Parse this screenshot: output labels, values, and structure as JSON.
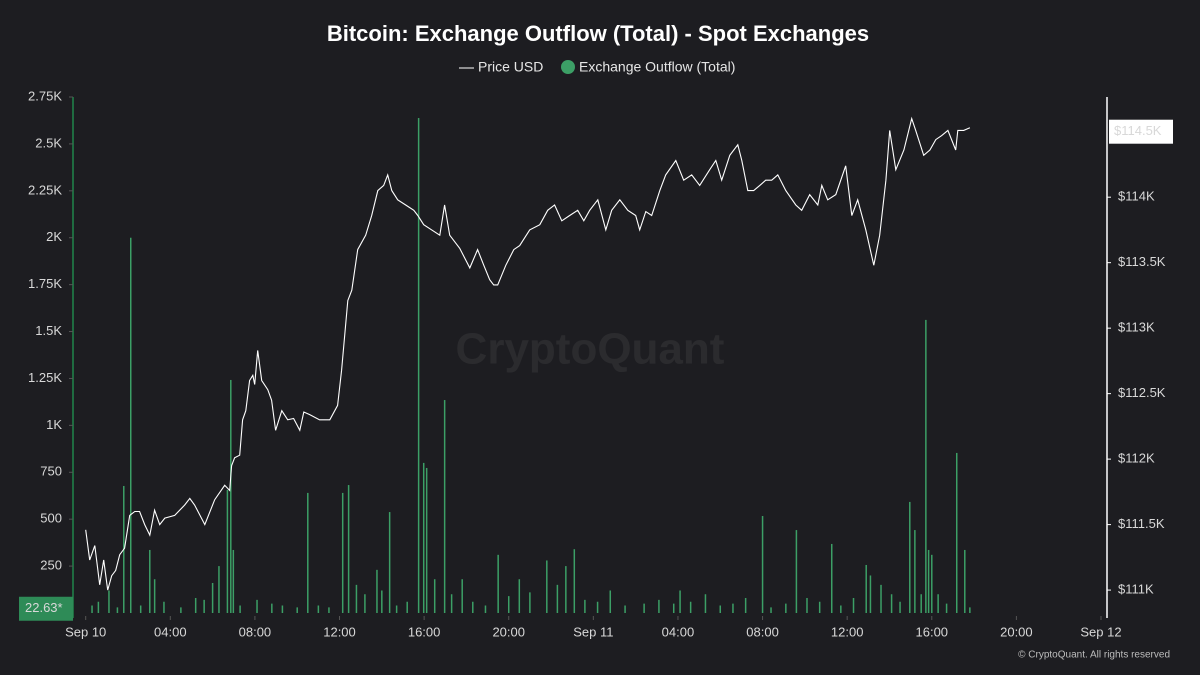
{
  "chart_data": {
    "type": "combo",
    "title": "Bitcoin: Exchange Outflow (Total) - Spot Exchanges",
    "watermark": "CryptoQuant",
    "credit": "© CryptoQuant. All rights reserved",
    "xlim": [
      -0.6,
      48
    ],
    "xticks": [
      {
        "value": 0,
        "label": "Sep 10"
      },
      {
        "value": 4,
        "label": "04:00"
      },
      {
        "value": 8,
        "label": "08:00"
      },
      {
        "value": 12,
        "label": "12:00"
      },
      {
        "value": 16,
        "label": "16:00"
      },
      {
        "value": 20,
        "label": "20:00"
      },
      {
        "value": 24,
        "label": "Sep 11"
      },
      {
        "value": 28,
        "label": "04:00"
      },
      {
        "value": 32,
        "label": "08:00"
      },
      {
        "value": 36,
        "label": "12:00"
      },
      {
        "value": 40,
        "label": "16:00"
      },
      {
        "value": 44,
        "label": "20:00"
      },
      {
        "value": 48,
        "label": "Sep 12"
      }
    ],
    "ylim": [
      0,
      2750
    ],
    "yticks": [
      250,
      500,
      750,
      {
        "value": 1000,
        "label": "1K"
      },
      {
        "value": 1250,
        "label": "1.25K"
      },
      {
        "value": 1500,
        "label": "1.5K"
      },
      {
        "value": 1750,
        "label": "1.75K"
      },
      {
        "value": 2000,
        "label": "2K"
      },
      {
        "value": 2250,
        "label": "2.25K"
      },
      {
        "value": 2500,
        "label": "2.5K"
      },
      {
        "value": 2750,
        "label": "2.75K"
      }
    ],
    "y2lim": [
      110825,
      114765
    ],
    "y2ticks": [
      {
        "value": 111000,
        "label": "$111K"
      },
      {
        "value": 111500,
        "label": "$111.5K"
      },
      {
        "value": 112000,
        "label": "$112K"
      },
      {
        "value": 112500,
        "label": "$112.5K"
      },
      {
        "value": 113000,
        "label": "$113K"
      },
      {
        "value": 113500,
        "label": "$113.5K"
      },
      {
        "value": 114000,
        "label": "$114K"
      }
    ],
    "price_marker": {
      "value": 114500,
      "label": "$114.5K"
    },
    "outflow_marker": {
      "value": 22.63,
      "label": "22.63*"
    },
    "series": [
      {
        "name": "Price USD",
        "type": "line",
        "axis": "y2",
        "color": "#ffffff",
        "x": [
          0,
          0.19,
          0.43,
          0.66,
          0.85,
          1.04,
          1.23,
          1.42,
          1.61,
          1.84,
          2.08,
          2.32,
          2.55,
          2.79,
          3.03,
          3.26,
          3.5,
          3.74,
          4.21,
          4.68,
          4.92,
          5.15,
          5.63,
          6.1,
          6.57,
          6.81,
          6.9,
          7.04,
          7.28,
          7.42,
          7.57,
          7.75,
          7.9,
          7.99,
          8.13,
          8.32,
          8.61,
          8.79,
          8.98,
          9.27,
          9.55,
          9.83,
          10.12,
          10.31,
          10.59,
          11.06,
          11.54,
          11.91,
          12.1,
          12.39,
          12.58,
          12.86,
          13.24,
          13.52,
          13.81,
          14.09,
          14.28,
          14.47,
          14.75,
          15.13,
          15.51,
          15.7,
          15.98,
          16.36,
          16.74,
          16.97,
          17.21,
          17.68,
          18.16,
          18.53,
          18.82,
          19.1,
          19.29,
          19.48,
          19.86,
          20.24,
          20.52,
          20.99,
          21.47,
          21.84,
          22.17,
          22.51,
          22.88,
          23.26,
          23.55,
          23.83,
          24.21,
          24.59,
          24.87,
          25.25,
          25.63,
          26,
          26.19,
          26.48,
          26.76,
          27.14,
          27.42,
          27.9,
          28.27,
          28.65,
          29.03,
          29.5,
          29.79,
          30.07,
          30.45,
          30.83,
          31.02,
          31.3,
          31.58,
          31.87,
          32.15,
          32.43,
          32.72,
          33.1,
          33.57,
          33.85,
          34.23,
          34.61,
          34.8,
          35.08,
          35.46,
          35.93,
          36.22,
          36.5,
          36.88,
          37.26,
          37.54,
          37.83,
          38.01,
          38.3,
          38.68,
          39.05,
          39.24,
          39.62,
          39.91,
          40.19,
          40.47,
          40.76,
          41.13,
          41.23,
          41.51,
          41.8
        ],
        "values": [
          111460,
          111230,
          111340,
          111040,
          111230,
          111000,
          111110,
          111150,
          111270,
          111320,
          111570,
          111600,
          111600,
          111500,
          111420,
          111610,
          111500,
          111550,
          111570,
          111650,
          111700,
          111650,
          111500,
          111690,
          111800,
          111760,
          111950,
          112010,
          112030,
          112300,
          112370,
          112600,
          112640,
          112570,
          112830,
          112600,
          112530,
          112450,
          112220,
          112370,
          112300,
          112310,
          112220,
          112360,
          112340,
          112300,
          112300,
          112410,
          112680,
          113210,
          113290,
          113600,
          113710,
          113860,
          114050,
          114090,
          114170,
          114050,
          113980,
          113940,
          113900,
          113860,
          113790,
          113750,
          113710,
          113940,
          113710,
          113610,
          113460,
          113600,
          113480,
          113370,
          113330,
          113330,
          113480,
          113600,
          113630,
          113750,
          113790,
          113900,
          113940,
          113820,
          113860,
          113900,
          113820,
          113900,
          113980,
          113750,
          113900,
          113980,
          113900,
          113860,
          113750,
          113890,
          113860,
          114050,
          114170,
          114280,
          114130,
          114170,
          114090,
          114210,
          114280,
          114130,
          114320,
          114400,
          114280,
          114050,
          114050,
          114090,
          114130,
          114130,
          114170,
          114050,
          113940,
          113900,
          114020,
          113940,
          114090,
          113980,
          114020,
          114240,
          113860,
          113980,
          113750,
          113480,
          113710,
          114130,
          114510,
          114210,
          114360,
          114600,
          114510,
          114320,
          114360,
          114440,
          114470,
          114510,
          114360,
          114510,
          114510,
          114530
        ]
      },
      {
        "name": "Exchange Outflow (Total)",
        "type": "bar",
        "axis": "y",
        "color": "#3c9f66",
        "x": [
          0.3,
          0.6,
          1.1,
          1.5,
          1.8,
          2.13,
          2.6,
          3.03,
          3.26,
          3.7,
          4.5,
          5.2,
          5.6,
          6.0,
          6.3,
          6.7,
          6.86,
          6.98,
          7.3,
          8.1,
          8.8,
          9.3,
          10.0,
          10.5,
          11.0,
          11.5,
          12.15,
          12.43,
          12.8,
          13.2,
          13.77,
          14.0,
          14.37,
          14.7,
          15.2,
          15.74,
          15.98,
          16.12,
          16.5,
          16.97,
          17.3,
          17.8,
          18.3,
          18.9,
          19.5,
          20.0,
          20.5,
          21.0,
          21.8,
          22.3,
          22.7,
          23.1,
          23.6,
          24.2,
          24.8,
          25.5,
          26.4,
          27.1,
          27.8,
          28.1,
          28.6,
          29.3,
          30.0,
          30.6,
          31.2,
          32.0,
          32.4,
          33.1,
          33.6,
          34.1,
          34.7,
          35.27,
          35.7,
          36.3,
          36.9,
          37.1,
          37.6,
          38.1,
          38.5,
          38.96,
          39.2,
          39.5,
          39.72,
          39.85,
          40.0,
          40.3,
          40.7,
          41.18,
          41.56,
          41.8
        ],
        "values": [
          40,
          60,
          120,
          30,
          677,
          2000,
          40,
          336,
          180,
          60,
          30,
          80,
          70,
          160,
          250,
          656,
          1242,
          336,
          40,
          70,
          50,
          40,
          30,
          640,
          40,
          30,
          640,
          682,
          150,
          100,
          230,
          120,
          538,
          40,
          60,
          2638,
          800,
          773,
          180,
          1135,
          100,
          180,
          60,
          40,
          310,
          90,
          180,
          110,
          280,
          150,
          250,
          340,
          70,
          60,
          120,
          40,
          50,
          70,
          50,
          120,
          60,
          100,
          40,
          50,
          80,
          517,
          30,
          50,
          442,
          80,
          60,
          368,
          40,
          80,
          256,
          200,
          150,
          100,
          60,
          592,
          442,
          100,
          1562,
          336,
          310,
          100,
          50,
          853,
          336,
          30
        ]
      }
    ]
  }
}
